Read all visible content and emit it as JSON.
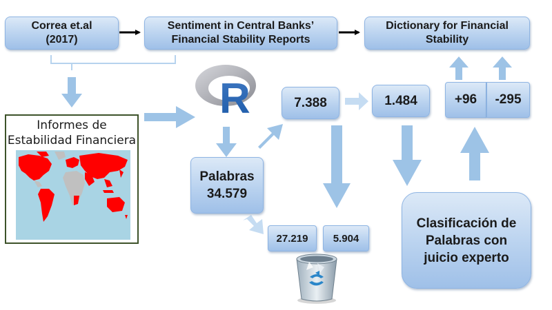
{
  "boxes": {
    "correa": "Correa et.al\n(2017)",
    "sentiment": "Sentiment in Central Banks’\nFinancial Stability Reports",
    "dictionary": "Dictionary for Financial\nStability",
    "n7388": "7.388",
    "n1484": "1.484",
    "plus96": "+96",
    "minus295": "-295",
    "palabras": "Palabras\n34.579",
    "n27219": "27.219",
    "n5904": "5.904",
    "clasificacion": "Clasificación de\nPalabras con\njuicio experto"
  },
  "informes": {
    "title": "Informes de\nEstabilidad Financiera"
  },
  "logo": {
    "letter": "R"
  },
  "colors": {
    "arrow_light": "#9dc3e6",
    "box_border": "#8eb4e3",
    "map_highlight": "#ff0000",
    "map_ocean": "#a9d4e4",
    "map_land": "#c0c0c0"
  },
  "icons": {
    "logo": "r-logo-icon",
    "bin": "recycle-bin-icon",
    "map": "world-map-icon"
  }
}
